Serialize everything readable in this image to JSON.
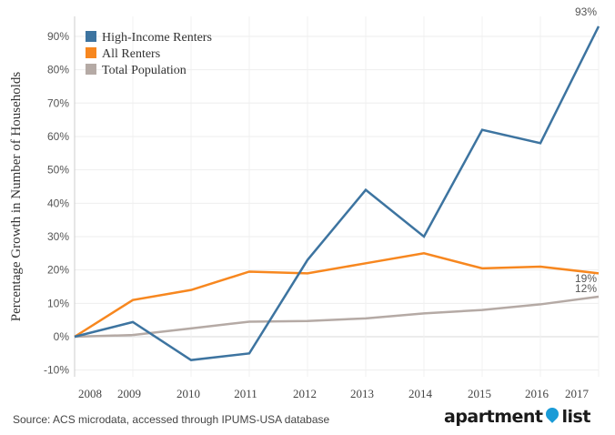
{
  "chart_data": {
    "type": "line",
    "ylabel": "Percentage Growth in Number of Households",
    "x": [
      2008,
      2009,
      2010,
      2011,
      2012,
      2013,
      2014,
      2015,
      2016,
      2017
    ],
    "ylim": [
      -12,
      96
    ],
    "yticks": [
      -10,
      0,
      10,
      20,
      30,
      40,
      50,
      60,
      70,
      80,
      90
    ],
    "grid": true,
    "legend": "top-left",
    "series": [
      {
        "name": "High-Income Renters",
        "color": "#3d74a0",
        "values": [
          0,
          4.4,
          -7,
          -5,
          23,
          44,
          30,
          62,
          58,
          93
        ]
      },
      {
        "name": "All Renters",
        "color": "#f7871f",
        "values": [
          0,
          11,
          14,
          19.5,
          19,
          22,
          25,
          20.5,
          21,
          19
        ]
      },
      {
        "name": "Total Population",
        "color": "#b5aaa5",
        "values": [
          0,
          0.5,
          2.5,
          4.5,
          4.7,
          5.5,
          7,
          8,
          9.7,
          12
        ]
      }
    ],
    "end_labels": [
      "93%",
      "19%",
      "12%"
    ]
  },
  "source": "Source: ACS microdata, accessed through IPUMS-USA database",
  "logo": {
    "left": "apartment",
    "right": "list"
  }
}
